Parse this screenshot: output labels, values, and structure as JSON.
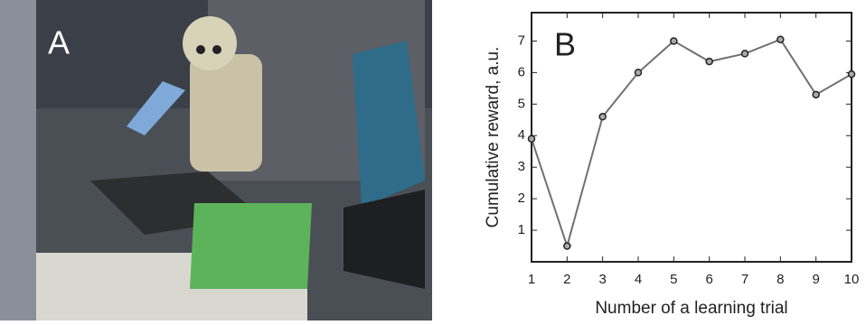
{
  "photo_label": "A",
  "chart_data": {
    "type": "line",
    "annotation": "B",
    "x_label": "Number of a learning trial",
    "y_label": "Cumulative reward, a.u.",
    "x": [
      1,
      2,
      3,
      4,
      5,
      6,
      7,
      8,
      9,
      10
    ],
    "series": [
      {
        "color": "#707070",
        "values": [
          3.9,
          0.5,
          4.6,
          6.0,
          7.0,
          6.35,
          6.6,
          7.05,
          5.3,
          5.95
        ]
      }
    ],
    "xlim": [
      1,
      10
    ],
    "xticks": [
      1,
      2,
      3,
      4,
      5,
      6,
      7,
      8,
      9,
      10
    ],
    "ylim": [
      0,
      7.9
    ],
    "yticks": [
      1,
      2,
      3,
      4,
      5,
      6,
      7
    ]
  }
}
